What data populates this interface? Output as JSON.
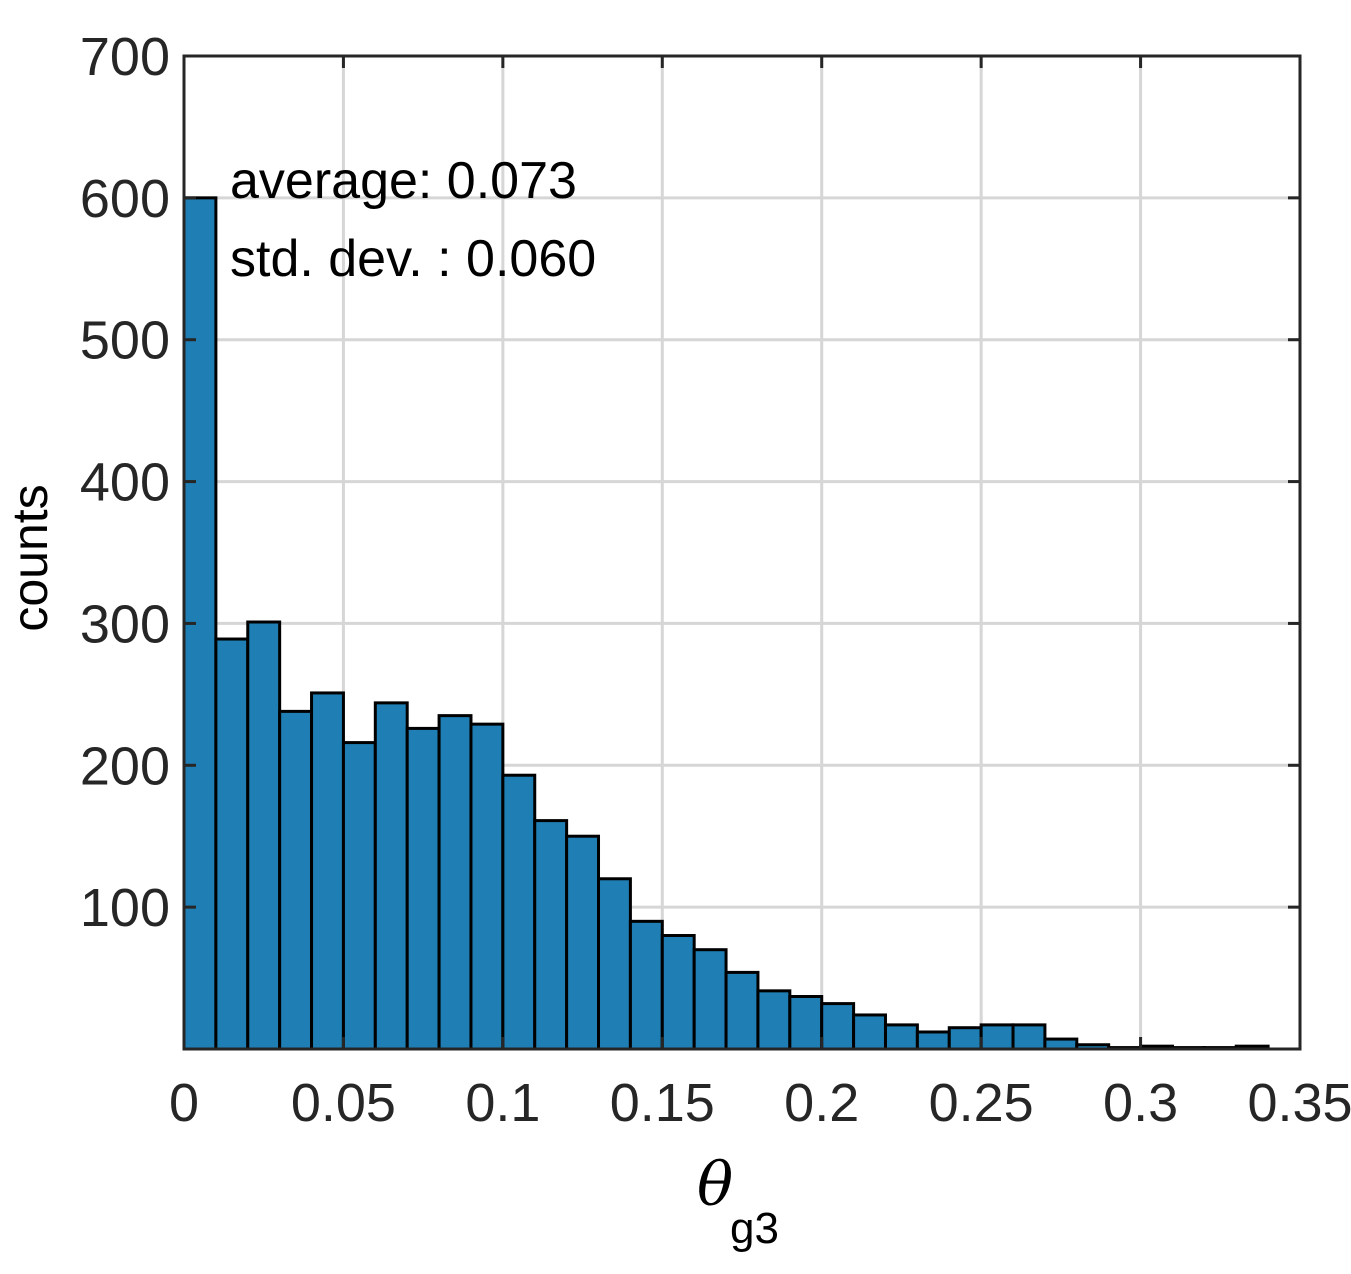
{
  "chart_data": {
    "type": "bar",
    "title": "",
    "xlabel": "θ",
    "xlabel_subscript": "g3",
    "ylabel": "counts",
    "xlim": [
      0,
      0.35
    ],
    "ylim": [
      0,
      700
    ],
    "xticks": [
      "0",
      "0.05",
      "0.1",
      "0.15",
      "0.2",
      "0.25",
      "0.3",
      "0.35"
    ],
    "yticks": [
      "100",
      "200",
      "300",
      "400",
      "500",
      "600",
      "700"
    ],
    "grid": true,
    "bar_color": "#1f7fb4",
    "bin_width": 0.01,
    "bin_edges": [
      0,
      0.01,
      0.02,
      0.03,
      0.04,
      0.05,
      0.06,
      0.07,
      0.08,
      0.09,
      0.1,
      0.11,
      0.12,
      0.13,
      0.14,
      0.15,
      0.16,
      0.17,
      0.18,
      0.19,
      0.2,
      0.21,
      0.22,
      0.23,
      0.24,
      0.25,
      0.26,
      0.27,
      0.28,
      0.29,
      0.3,
      0.31,
      0.32,
      0.33,
      0.34
    ],
    "values": [
      600,
      289,
      301,
      238,
      251,
      216,
      244,
      226,
      235,
      229,
      193,
      161,
      150,
      120,
      90,
      80,
      70,
      54,
      41,
      37,
      32,
      24,
      17,
      12,
      15,
      17,
      17,
      7,
      3,
      1,
      2,
      1,
      1,
      2
    ],
    "annotations": [
      "average: 0.073",
      "std. dev. : 0.060"
    ]
  }
}
